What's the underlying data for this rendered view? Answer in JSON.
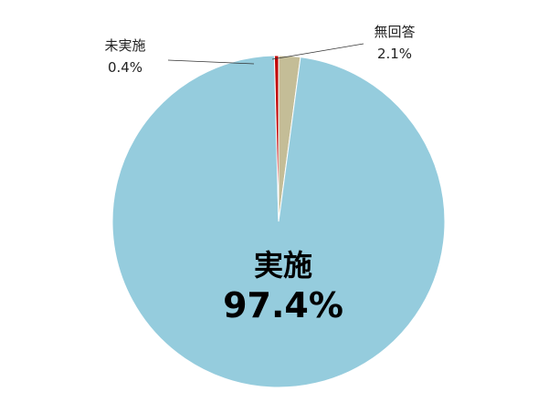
{
  "chart_data": {
    "type": "pie",
    "title": "",
    "slices": [
      {
        "label": "実施",
        "value": 97.4,
        "value_label": "97.4%",
        "color": "#95CCDD"
      },
      {
        "label": "未実施",
        "value": 0.4,
        "value_label": "0.4%",
        "color": "#C00000"
      },
      {
        "label": "無回答",
        "value": 2.1,
        "value_label": "2.1%",
        "color": "#C4BD97"
      }
    ],
    "start": "top",
    "direction": "clockwise",
    "legend": "none",
    "slice_border_color": "#ffffff"
  }
}
